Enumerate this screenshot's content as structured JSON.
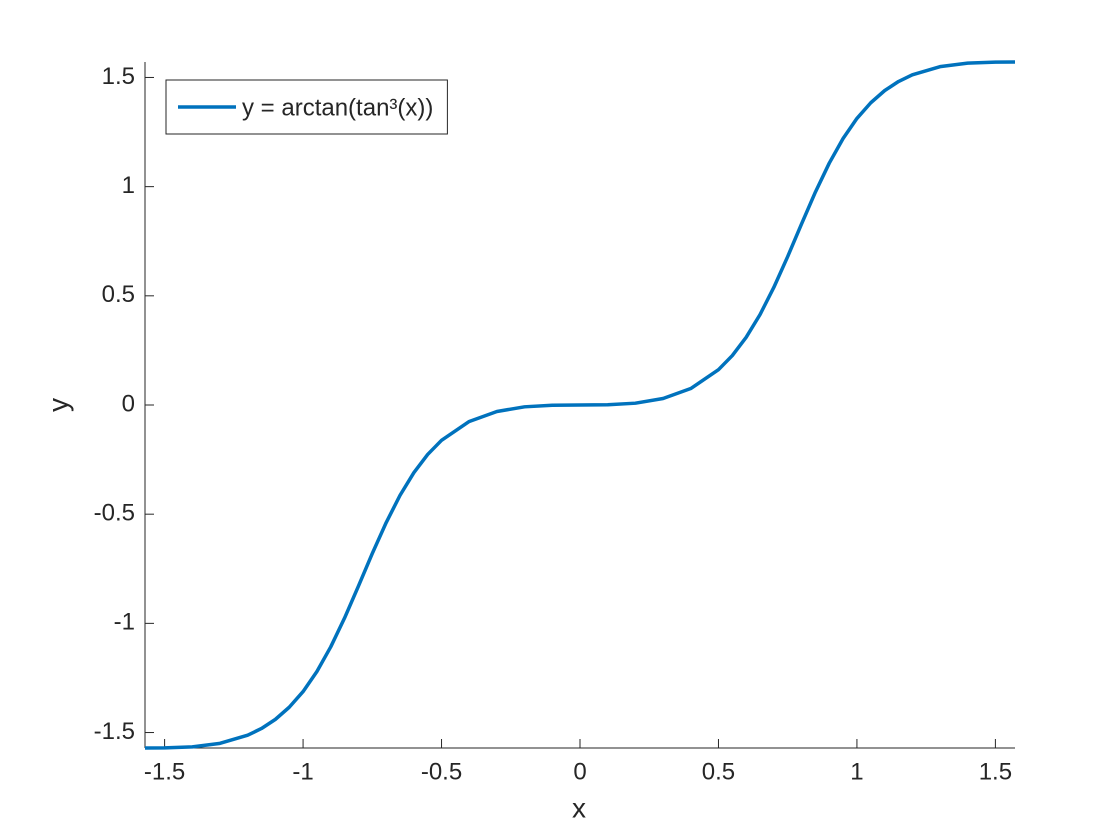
{
  "chart_data": {
    "type": "line",
    "xlabel": "x",
    "ylabel": "y",
    "x": [
      -1.5708,
      -1.5,
      -1.4,
      -1.3,
      -1.2,
      -1.15,
      -1.1,
      -1.05,
      -1,
      -0.95,
      -0.9,
      -0.85,
      -0.8,
      -0.75,
      -0.7,
      -0.65,
      -0.6,
      -0.55,
      -0.5,
      -0.4,
      -0.3,
      -0.2,
      -0.1,
      0,
      0.1,
      0.2,
      0.3,
      0.4,
      0.5,
      0.55,
      0.6,
      0.65,
      0.7,
      0.75,
      0.8,
      0.85,
      0.9,
      0.95,
      1,
      1.05,
      1.1,
      1.15,
      1.2,
      1.3,
      1.4,
      1.5,
      1.5708
    ],
    "series": [
      {
        "name": "y = arctan(tan³(x))",
        "color": "#0072bd",
        "values": [
          -1.5708,
          -1.5704,
          -1.5657,
          -1.5494,
          -1.5121,
          -1.4814,
          -1.4397,
          -1.3842,
          -1.3124,
          -1.2205,
          -1.1074,
          -0.9751,
          -0.8293,
          -0.6799,
          -0.5388,
          -0.4139,
          -0.3101,
          -0.2265,
          -0.1616,
          -0.0754,
          -0.0296,
          -0.0083,
          -0.001,
          0,
          0.001,
          0.0083,
          0.0296,
          0.0754,
          0.1616,
          0.2265,
          0.3101,
          0.4139,
          0.5388,
          0.6799,
          0.8293,
          0.9751,
          1.1074,
          1.2205,
          1.3124,
          1.3842,
          1.4397,
          1.4814,
          1.5121,
          1.5494,
          1.5657,
          1.5704,
          1.5708
        ]
      }
    ],
    "xlim": [
      -1.5708,
      1.5708
    ],
    "ylim": [
      -1.5708,
      1.5708
    ],
    "xticks": [
      -1.5,
      -1,
      -0.5,
      0,
      0.5,
      1,
      1.5
    ],
    "yticks": [
      -1.5,
      -1,
      -0.5,
      0,
      0.5,
      1,
      1.5
    ],
    "legend": "upper-left",
    "grid": false
  }
}
